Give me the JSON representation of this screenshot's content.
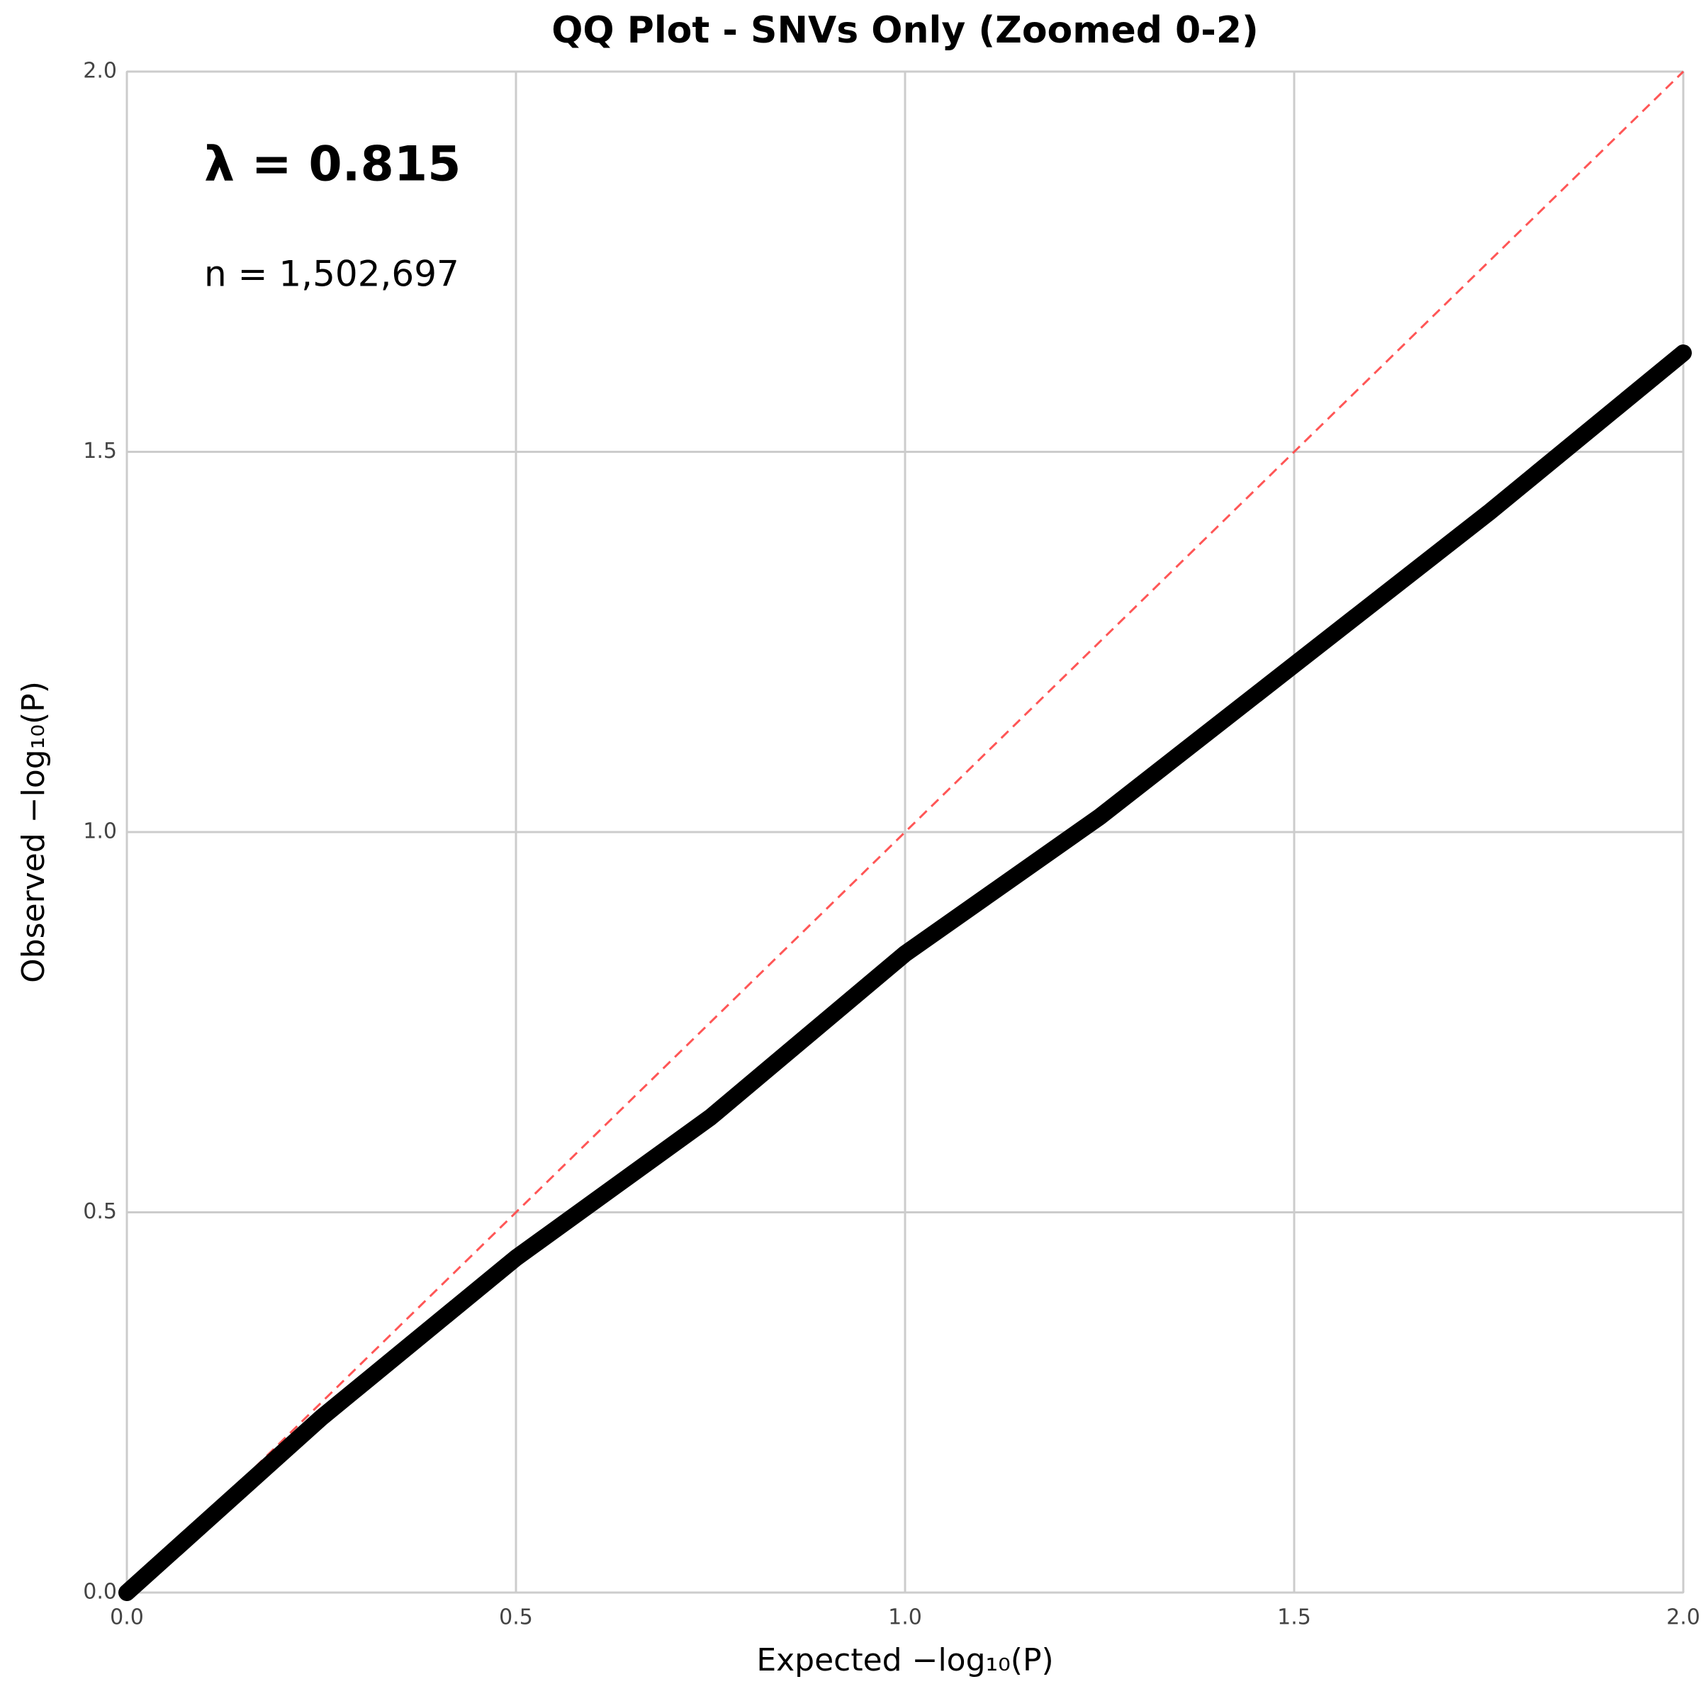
{
  "chart_data": {
    "type": "line",
    "title": "QQ Plot - SNVs Only (Zoomed 0-2)",
    "x_label": "Expected −log₁₀(P)",
    "y_label": "Observed −log₁₀(P)",
    "annotations": [
      "λ = 0.815",
      "n = 1,502,697"
    ],
    "x": [
      0,
      0.25,
      0.5,
      0.75,
      1.0,
      1.25,
      1.5,
      1.75,
      2.0
    ],
    "series": [
      {
        "color": "#000000",
        "values": [
          0,
          0.23,
          0.44,
          0.625,
          0.84,
          1.02,
          1.22,
          1.42,
          1.63
        ]
      }
    ],
    "reference_line": {
      "color": "#ff4444",
      "dashed": true
    },
    "xlim": [
      0,
      2
    ],
    "ylim": [
      0,
      2
    ],
    "xticks": [
      {
        "value": 0,
        "label": "0.0"
      },
      0.5,
      {
        "value": 1,
        "label": "1.0"
      },
      1.5,
      {
        "value": 2,
        "label": "2.0"
      }
    ],
    "yticks": [
      {
        "value": 0,
        "label": "0.0"
      },
      0.5,
      {
        "value": 1,
        "label": "1.0"
      },
      1.5,
      {
        "value": 2,
        "label": "2.0"
      }
    ],
    "grid": true
  }
}
